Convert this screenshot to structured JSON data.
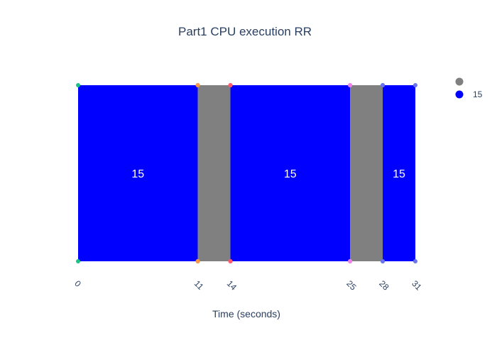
{
  "chart_data": {
    "type": "area",
    "title": "Part1 CPU execution RR",
    "xlabel": "Time (seconds)",
    "ylabel": "",
    "xlim": [
      0,
      31
    ],
    "x_ticks": [
      0,
      11,
      14,
      25,
      28,
      31
    ],
    "grid": false,
    "legend_placement": "top-right",
    "segments": [
      {
        "start": 0,
        "end": 11,
        "process": "15",
        "color": "#0000ff",
        "start_marker": "#19c28a",
        "end_marker": "#f59a4c"
      },
      {
        "start": 11,
        "end": 14,
        "process": "",
        "color": "#808080",
        "start_marker": "#f59a4c",
        "end_marker": "#ff5b6e"
      },
      {
        "start": 14,
        "end": 25,
        "process": "15",
        "color": "#0000ff",
        "start_marker": "#ff5b6e",
        "end_marker": "#ee82ee"
      },
      {
        "start": 25,
        "end": 28,
        "process": "",
        "color": "#808080",
        "start_marker": "#ee82ee",
        "end_marker": "#6b74e8"
      },
      {
        "start": 28,
        "end": 31,
        "process": "15",
        "color": "#0000ff",
        "start_marker": "#6b74e8",
        "end_marker": "#6b74e8"
      }
    ],
    "legend": [
      {
        "name": "",
        "color": "#808080"
      },
      {
        "name": "15",
        "color": "#0000ff"
      }
    ]
  }
}
